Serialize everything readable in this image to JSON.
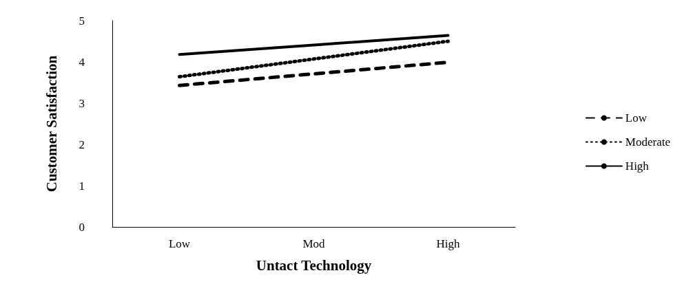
{
  "chart_data": {
    "type": "line",
    "xlabel": "Untact Technology",
    "ylabel": "Customer Satisfaction",
    "categories": [
      "Low",
      "Mod",
      "High"
    ],
    "series": [
      {
        "name": "Low",
        "color": "#000000",
        "line_style": "dashed",
        "values": [
          3.43,
          3.71,
          3.99
        ]
      },
      {
        "name": "Moderate",
        "color": "#000000",
        "line_style": "dotted",
        "values": [
          3.64,
          4.07,
          4.5
        ]
      },
      {
        "name": "High",
        "color": "#000000",
        "line_style": "solid",
        "values": [
          4.18,
          4.41,
          4.64
        ]
      }
    ],
    "ylim": [
      0,
      5
    ],
    "yticks": [
      0,
      1,
      2,
      3,
      4,
      5
    ],
    "grid": false,
    "legend": "right",
    "marker": "none"
  }
}
